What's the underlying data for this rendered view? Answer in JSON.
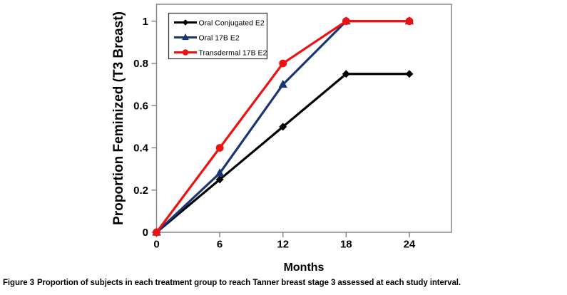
{
  "figure": {
    "caption_label": "Figure 3",
    "caption_text": "Proportion of subjects in each treatment group to reach Tanner breast stage 3 assessed at each study interval."
  },
  "chart_data": {
    "type": "line",
    "x": [
      0,
      6,
      12,
      18,
      24
    ],
    "xlabel": "Months",
    "ylabel": "Proportion Feminized (T3 Breast)",
    "xticks": [
      0,
      6,
      12,
      18,
      24
    ],
    "yticks": [
      0,
      0.2,
      0.4,
      0.6,
      0.8,
      1
    ],
    "xlim": [
      0,
      28
    ],
    "ylim": [
      0,
      1.08
    ],
    "grid": false,
    "legend_position": "top-left-inside",
    "axis_color": "#808080",
    "text_color": "#000000",
    "background_color": "#ffffff",
    "series": [
      {
        "name": "Oral Conjugated E2",
        "color": "#000000",
        "marker": "diamond",
        "values": [
          0,
          0.25,
          0.5,
          0.75,
          0.75
        ]
      },
      {
        "name": "Oral 17B E2",
        "color": "#1A3573",
        "marker": "triangle",
        "values": [
          0,
          0.28,
          0.7,
          1,
          1
        ]
      },
      {
        "name": "Transdermal 17B E2",
        "color": "#EE1111",
        "marker": "circle",
        "values": [
          0,
          0.4,
          0.8,
          1,
          1
        ]
      }
    ]
  }
}
